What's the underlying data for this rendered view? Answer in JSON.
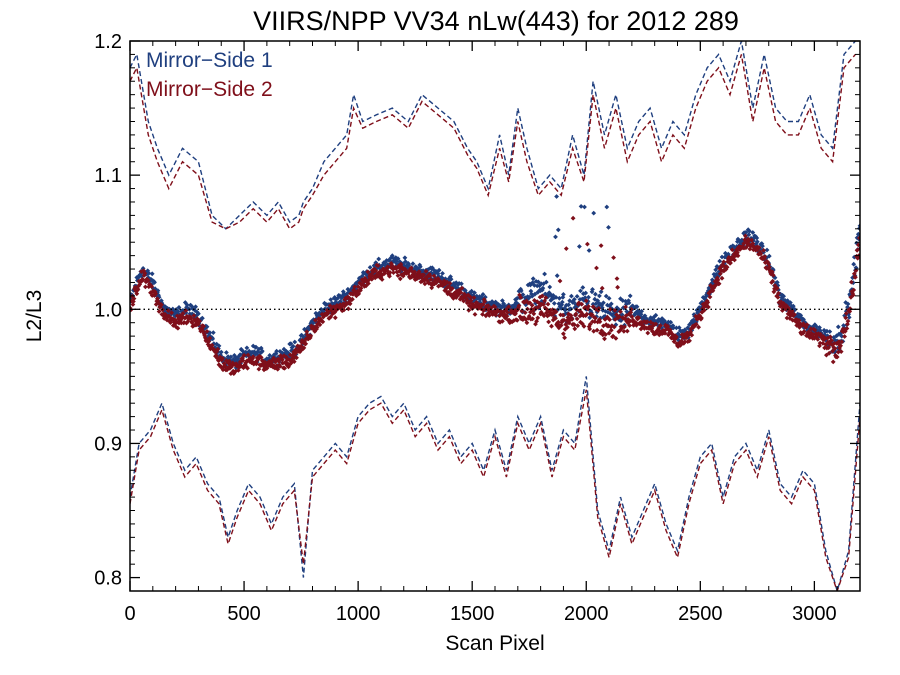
{
  "chart_data": {
    "type": "scatter",
    "title": "VIIRS/NPP VV34 nLw(443) for 2012 289",
    "xlabel": "Scan Pixel",
    "ylabel": "L2/L3",
    "xlim": [
      0,
      3200
    ],
    "ylim": [
      0.79,
      1.2
    ],
    "xticks": [
      0,
      500,
      1000,
      1500,
      2000,
      2500,
      3000
    ],
    "yticks": [
      0.8,
      0.9,
      1.0,
      1.1,
      1.2
    ],
    "xtick_labels": [
      "0",
      "500",
      "1000",
      "1500",
      "2000",
      "2500",
      "3000"
    ],
    "ytick_labels": [
      "0.8",
      "0.9",
      "1.0",
      "1.1",
      "1.2"
    ],
    "reference_line": 1.0,
    "grid": false,
    "legend_position": "top-left",
    "series": [
      {
        "name": "Mirror−Side 1",
        "color": "#1f3f7f",
        "mean": {
          "x": [
            0,
            50,
            100,
            150,
            200,
            250,
            300,
            350,
            400,
            450,
            500,
            550,
            600,
            650,
            700,
            750,
            800,
            850,
            900,
            950,
            1000,
            1050,
            1100,
            1150,
            1200,
            1250,
            1300,
            1350,
            1400,
            1450,
            1500,
            1550,
            1600,
            1650,
            1700,
            1750,
            1800,
            1850,
            1900,
            1950,
            2000,
            2050,
            2100,
            2150,
            2200,
            2250,
            2300,
            2350,
            2400,
            2450,
            2500,
            2550,
            2600,
            2650,
            2700,
            2750,
            2800,
            2850,
            2900,
            2950,
            3000,
            3050,
            3100,
            3150,
            3200
          ],
          "y": [
            1.005,
            1.03,
            1.02,
            1.0,
            0.995,
            1.0,
            0.995,
            0.98,
            0.965,
            0.96,
            0.965,
            0.968,
            0.962,
            0.965,
            0.968,
            0.975,
            0.99,
            1.0,
            1.005,
            1.01,
            1.02,
            1.028,
            1.032,
            1.035,
            1.032,
            1.03,
            1.028,
            1.025,
            1.02,
            1.015,
            1.008,
            1.005,
            1.002,
            1.0,
            1.005,
            1.01,
            1.015,
            1.008,
            1.0,
            1.002,
            1.005,
            1.002,
            0.998,
            0.995,
            1.0,
            0.995,
            0.99,
            0.99,
            0.98,
            0.985,
            1.0,
            1.02,
            1.035,
            1.045,
            1.055,
            1.05,
            1.035,
            1.01,
            1.0,
            0.99,
            0.985,
            0.98,
            0.975,
            1.0,
            1.06
          ]
        },
        "upper": {
          "x": [
            0,
            30,
            80,
            120,
            170,
            230,
            300,
            360,
            420,
            480,
            540,
            600,
            650,
            700,
            740,
            760,
            800,
            850,
            900,
            950,
            980,
            1020,
            1080,
            1150,
            1220,
            1280,
            1350,
            1420,
            1480,
            1520,
            1570,
            1620,
            1660,
            1700,
            1740,
            1790,
            1840,
            1890,
            1940,
            1990,
            2030,
            2080,
            2130,
            2180,
            2230,
            2280,
            2330,
            2380,
            2430,
            2480,
            2530,
            2580,
            2630,
            2680,
            2730,
            2780,
            2830,
            2880,
            2930,
            2980,
            3030,
            3080,
            3130,
            3180
          ],
          "y": [
            1.18,
            1.19,
            1.14,
            1.12,
            1.1,
            1.12,
            1.11,
            1.07,
            1.06,
            1.07,
            1.08,
            1.07,
            1.08,
            1.065,
            1.07,
            1.08,
            1.09,
            1.11,
            1.12,
            1.13,
            1.16,
            1.14,
            1.145,
            1.15,
            1.14,
            1.16,
            1.15,
            1.14,
            1.12,
            1.11,
            1.09,
            1.13,
            1.1,
            1.15,
            1.12,
            1.09,
            1.1,
            1.09,
            1.13,
            1.1,
            1.17,
            1.13,
            1.16,
            1.12,
            1.14,
            1.15,
            1.12,
            1.14,
            1.13,
            1.16,
            1.18,
            1.19,
            1.17,
            1.2,
            1.15,
            1.19,
            1.15,
            1.14,
            1.14,
            1.16,
            1.13,
            1.12,
            1.19,
            1.2
          ]
        },
        "lower": {
          "x": [
            0,
            40,
            90,
            140,
            190,
            240,
            290,
            340,
            390,
            430,
            470,
            520,
            570,
            620,
            670,
            720,
            760,
            800,
            850,
            900,
            950,
            1000,
            1050,
            1100,
            1150,
            1200,
            1250,
            1300,
            1350,
            1400,
            1450,
            1500,
            1550,
            1600,
            1650,
            1700,
            1750,
            1800,
            1850,
            1900,
            1950,
            2000,
            2050,
            2100,
            2150,
            2200,
            2250,
            2300,
            2350,
            2400,
            2450,
            2500,
            2550,
            2600,
            2650,
            2700,
            2750,
            2800,
            2850,
            2900,
            2950,
            3000,
            3050,
            3100,
            3150,
            3200
          ],
          "y": [
            0.86,
            0.9,
            0.91,
            0.93,
            0.9,
            0.88,
            0.89,
            0.87,
            0.86,
            0.83,
            0.85,
            0.87,
            0.86,
            0.84,
            0.86,
            0.87,
            0.8,
            0.88,
            0.89,
            0.9,
            0.89,
            0.92,
            0.93,
            0.935,
            0.92,
            0.93,
            0.91,
            0.92,
            0.9,
            0.91,
            0.89,
            0.9,
            0.88,
            0.91,
            0.88,
            0.92,
            0.9,
            0.92,
            0.88,
            0.91,
            0.9,
            0.95,
            0.85,
            0.82,
            0.86,
            0.83,
            0.85,
            0.87,
            0.84,
            0.82,
            0.86,
            0.89,
            0.9,
            0.86,
            0.89,
            0.9,
            0.88,
            0.91,
            0.87,
            0.86,
            0.88,
            0.87,
            0.82,
            0.79,
            0.82,
            0.93
          ]
        }
      },
      {
        "name": "Mirror−Side 2",
        "color": "#7f0f1a",
        "mean": {
          "x": [
            0,
            50,
            100,
            150,
            200,
            250,
            300,
            350,
            400,
            450,
            500,
            550,
            600,
            650,
            700,
            750,
            800,
            850,
            900,
            950,
            1000,
            1050,
            1100,
            1150,
            1200,
            1250,
            1300,
            1350,
            1400,
            1450,
            1500,
            1550,
            1600,
            1650,
            1700,
            1750,
            1800,
            1850,
            1900,
            1950,
            2000,
            2050,
            2100,
            2150,
            2200,
            2250,
            2300,
            2350,
            2400,
            2450,
            2500,
            2550,
            2600,
            2650,
            2700,
            2750,
            2800,
            2850,
            2900,
            2950,
            3000,
            3050,
            3100,
            3150,
            3200
          ],
          "y": [
            1.0,
            1.025,
            1.015,
            0.995,
            0.99,
            0.995,
            0.99,
            0.975,
            0.96,
            0.955,
            0.96,
            0.962,
            0.958,
            0.96,
            0.962,
            0.97,
            0.985,
            0.995,
            1.0,
            1.005,
            1.015,
            1.024,
            1.028,
            1.03,
            1.028,
            1.026,
            1.024,
            1.02,
            1.015,
            1.01,
            1.003,
            1.0,
            0.998,
            0.995,
            0.998,
            1.0,
            1.0,
            0.995,
            0.99,
            0.993,
            0.995,
            0.992,
            0.99,
            0.988,
            0.993,
            0.99,
            0.985,
            0.985,
            0.975,
            0.98,
            0.995,
            1.015,
            1.03,
            1.04,
            1.05,
            1.045,
            1.03,
            1.005,
            0.995,
            0.985,
            0.98,
            0.975,
            0.97,
            0.995,
            1.05
          ]
        },
        "upper": {
          "x": [
            0,
            30,
            80,
            120,
            170,
            230,
            300,
            360,
            420,
            480,
            540,
            600,
            650,
            700,
            740,
            760,
            800,
            850,
            900,
            950,
            980,
            1020,
            1080,
            1150,
            1220,
            1280,
            1350,
            1420,
            1480,
            1520,
            1570,
            1620,
            1660,
            1700,
            1740,
            1790,
            1840,
            1890,
            1940,
            1990,
            2030,
            2080,
            2130,
            2180,
            2230,
            2280,
            2330,
            2380,
            2430,
            2480,
            2530,
            2580,
            2630,
            2680,
            2730,
            2780,
            2830,
            2880,
            2930,
            2980,
            3030,
            3080,
            3130,
            3180
          ],
          "y": [
            1.17,
            1.18,
            1.13,
            1.11,
            1.09,
            1.11,
            1.1,
            1.065,
            1.06,
            1.065,
            1.075,
            1.065,
            1.075,
            1.06,
            1.065,
            1.075,
            1.085,
            1.1,
            1.11,
            1.12,
            1.15,
            1.135,
            1.14,
            1.145,
            1.135,
            1.155,
            1.145,
            1.135,
            1.115,
            1.105,
            1.085,
            1.12,
            1.095,
            1.14,
            1.11,
            1.085,
            1.095,
            1.085,
            1.12,
            1.095,
            1.16,
            1.12,
            1.15,
            1.11,
            1.13,
            1.14,
            1.11,
            1.13,
            1.12,
            1.15,
            1.17,
            1.18,
            1.16,
            1.19,
            1.14,
            1.18,
            1.14,
            1.13,
            1.13,
            1.15,
            1.12,
            1.11,
            1.18,
            1.19
          ]
        },
        "lower": {
          "x": [
            0,
            40,
            90,
            140,
            190,
            240,
            290,
            340,
            390,
            430,
            470,
            520,
            570,
            620,
            670,
            720,
            760,
            800,
            850,
            900,
            950,
            1000,
            1050,
            1100,
            1150,
            1200,
            1250,
            1300,
            1350,
            1400,
            1450,
            1500,
            1550,
            1600,
            1650,
            1700,
            1750,
            1800,
            1850,
            1900,
            1950,
            2000,
            2050,
            2100,
            2150,
            2200,
            2250,
            2300,
            2350,
            2400,
            2450,
            2500,
            2550,
            2600,
            2650,
            2700,
            2750,
            2800,
            2850,
            2900,
            2950,
            3000,
            3050,
            3100,
            3150,
            3200
          ],
          "y": [
            0.855,
            0.895,
            0.905,
            0.925,
            0.895,
            0.875,
            0.885,
            0.865,
            0.855,
            0.825,
            0.845,
            0.865,
            0.855,
            0.835,
            0.855,
            0.865,
            0.81,
            0.875,
            0.885,
            0.895,
            0.885,
            0.915,
            0.925,
            0.93,
            0.915,
            0.925,
            0.905,
            0.915,
            0.895,
            0.905,
            0.885,
            0.895,
            0.875,
            0.905,
            0.875,
            0.915,
            0.895,
            0.915,
            0.875,
            0.905,
            0.895,
            0.94,
            0.845,
            0.815,
            0.855,
            0.825,
            0.845,
            0.865,
            0.835,
            0.815,
            0.855,
            0.885,
            0.895,
            0.855,
            0.885,
            0.895,
            0.875,
            0.905,
            0.865,
            0.855,
            0.875,
            0.865,
            0.815,
            0.79,
            0.815,
            0.92
          ]
        }
      }
    ]
  }
}
